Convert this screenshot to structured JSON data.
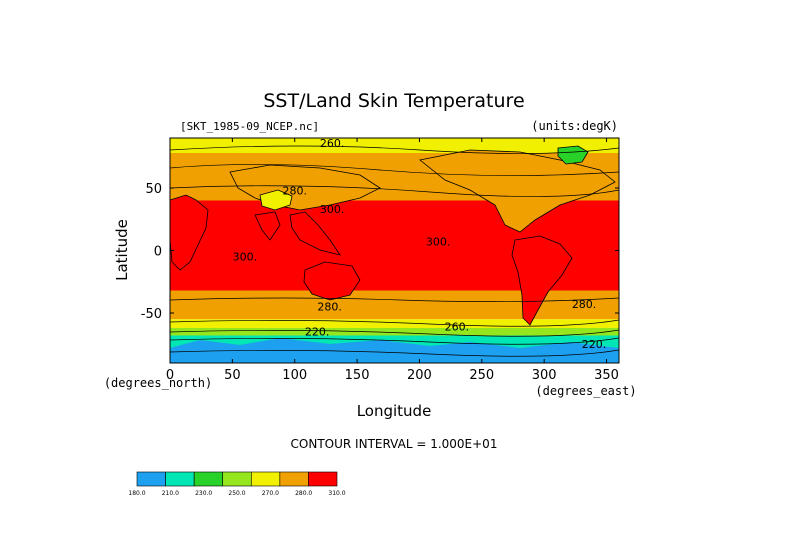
{
  "chart_data": {
    "type": "heatmap",
    "title": "SST/Land Skin Temperature",
    "file_label": "[SKT_1985-09_NCEP.nc]",
    "units_label": "(units:degK)",
    "xlabel": "Longitude",
    "ylabel": "Latitude",
    "x_unit_label": "(degrees_east)",
    "y_unit_label": "(degrees_north)",
    "xlim": [
      0,
      360
    ],
    "ylim": [
      -90,
      90
    ],
    "x_ticks": [
      0,
      50,
      100,
      150,
      200,
      250,
      300,
      350
    ],
    "y_ticks": [
      -50,
      0,
      50
    ],
    "contour_interval_text": "CONTOUR INTERVAL = 1.000E+01",
    "contour_labels": [
      {
        "text": "260.",
        "lon": 130,
        "lat": 83
      },
      {
        "text": "280.",
        "lon": 100,
        "lat": 45
      },
      {
        "text": "300.",
        "lon": 130,
        "lat": 30
      },
      {
        "text": "300.",
        "lon": 60,
        "lat": -8
      },
      {
        "text": "300.",
        "lon": 215,
        "lat": 4
      },
      {
        "text": "280.",
        "lon": 128,
        "lat": -48
      },
      {
        "text": "280.",
        "lon": 332,
        "lat": -46
      },
      {
        "text": "260.",
        "lon": 230,
        "lat": -64
      },
      {
        "text": "220.",
        "lon": 118,
        "lat": -68
      },
      {
        "text": "220.",
        "lon": 340,
        "lat": -78
      }
    ],
    "colorbar": {
      "levels": [
        "180.0",
        "210.0",
        "230.0",
        "250.0",
        "270.0",
        "280.0",
        "310.0"
      ],
      "colors": [
        "#1ea0f0",
        "#00e6b4",
        "#28d228",
        "#96e61e",
        "#f0f000",
        "#f0a000",
        "#ff0000"
      ]
    },
    "zones": [
      {
        "lat_from": 90,
        "lat_to": 78,
        "color": "#f0f000"
      },
      {
        "lat_from": 78,
        "lat_to": 66,
        "color": "#f0a000"
      },
      {
        "lat_from": 66,
        "lat_to": 40,
        "color": "#f0a000"
      },
      {
        "lat_from": 40,
        "lat_to": -32,
        "color": "#ff0000"
      },
      {
        "lat_from": -32,
        "lat_to": -55,
        "color": "#f0a000"
      },
      {
        "lat_from": -55,
        "lat_to": -62,
        "color": "#f0f000"
      },
      {
        "lat_from": -62,
        "lat_to": -68,
        "color": "#96e61e"
      },
      {
        "lat_from": -68,
        "lat_to": -90,
        "color": "#00e6b4"
      }
    ]
  }
}
